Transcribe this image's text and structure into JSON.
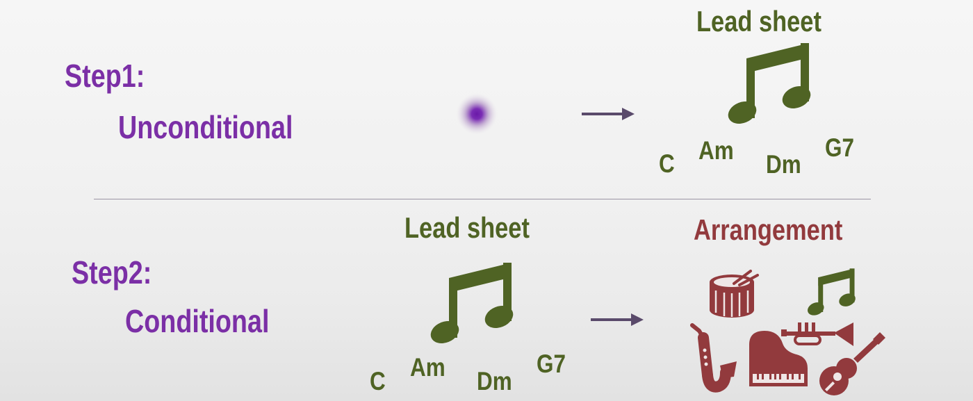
{
  "colors": {
    "step_label": "#7b2fa6",
    "lead_sheet": "#4f6324",
    "arrangement": "#923a3d",
    "arrow": "#5a4a6b",
    "divider": "#9a94a3"
  },
  "step1": {
    "label_line1": "Step1:",
    "label_line2": "Unconditional",
    "input_icon": "noise-dot-icon",
    "output": {
      "title": "Lead sheet",
      "icon": "music-note-icon",
      "chords": [
        "C",
        "Am",
        "Dm",
        "G7"
      ]
    }
  },
  "step2": {
    "label_line1": "Step2:",
    "label_line2": "Conditional",
    "input": {
      "title": "Lead sheet",
      "icon": "music-note-icon",
      "chords": [
        "C",
        "Am",
        "Dm",
        "G7"
      ]
    },
    "output": {
      "title": "Arrangement",
      "icons": [
        "drum-icon",
        "music-note-icon",
        "saxophone-icon",
        "piano-icon",
        "trumpet-icon",
        "guitar-icon"
      ]
    }
  }
}
